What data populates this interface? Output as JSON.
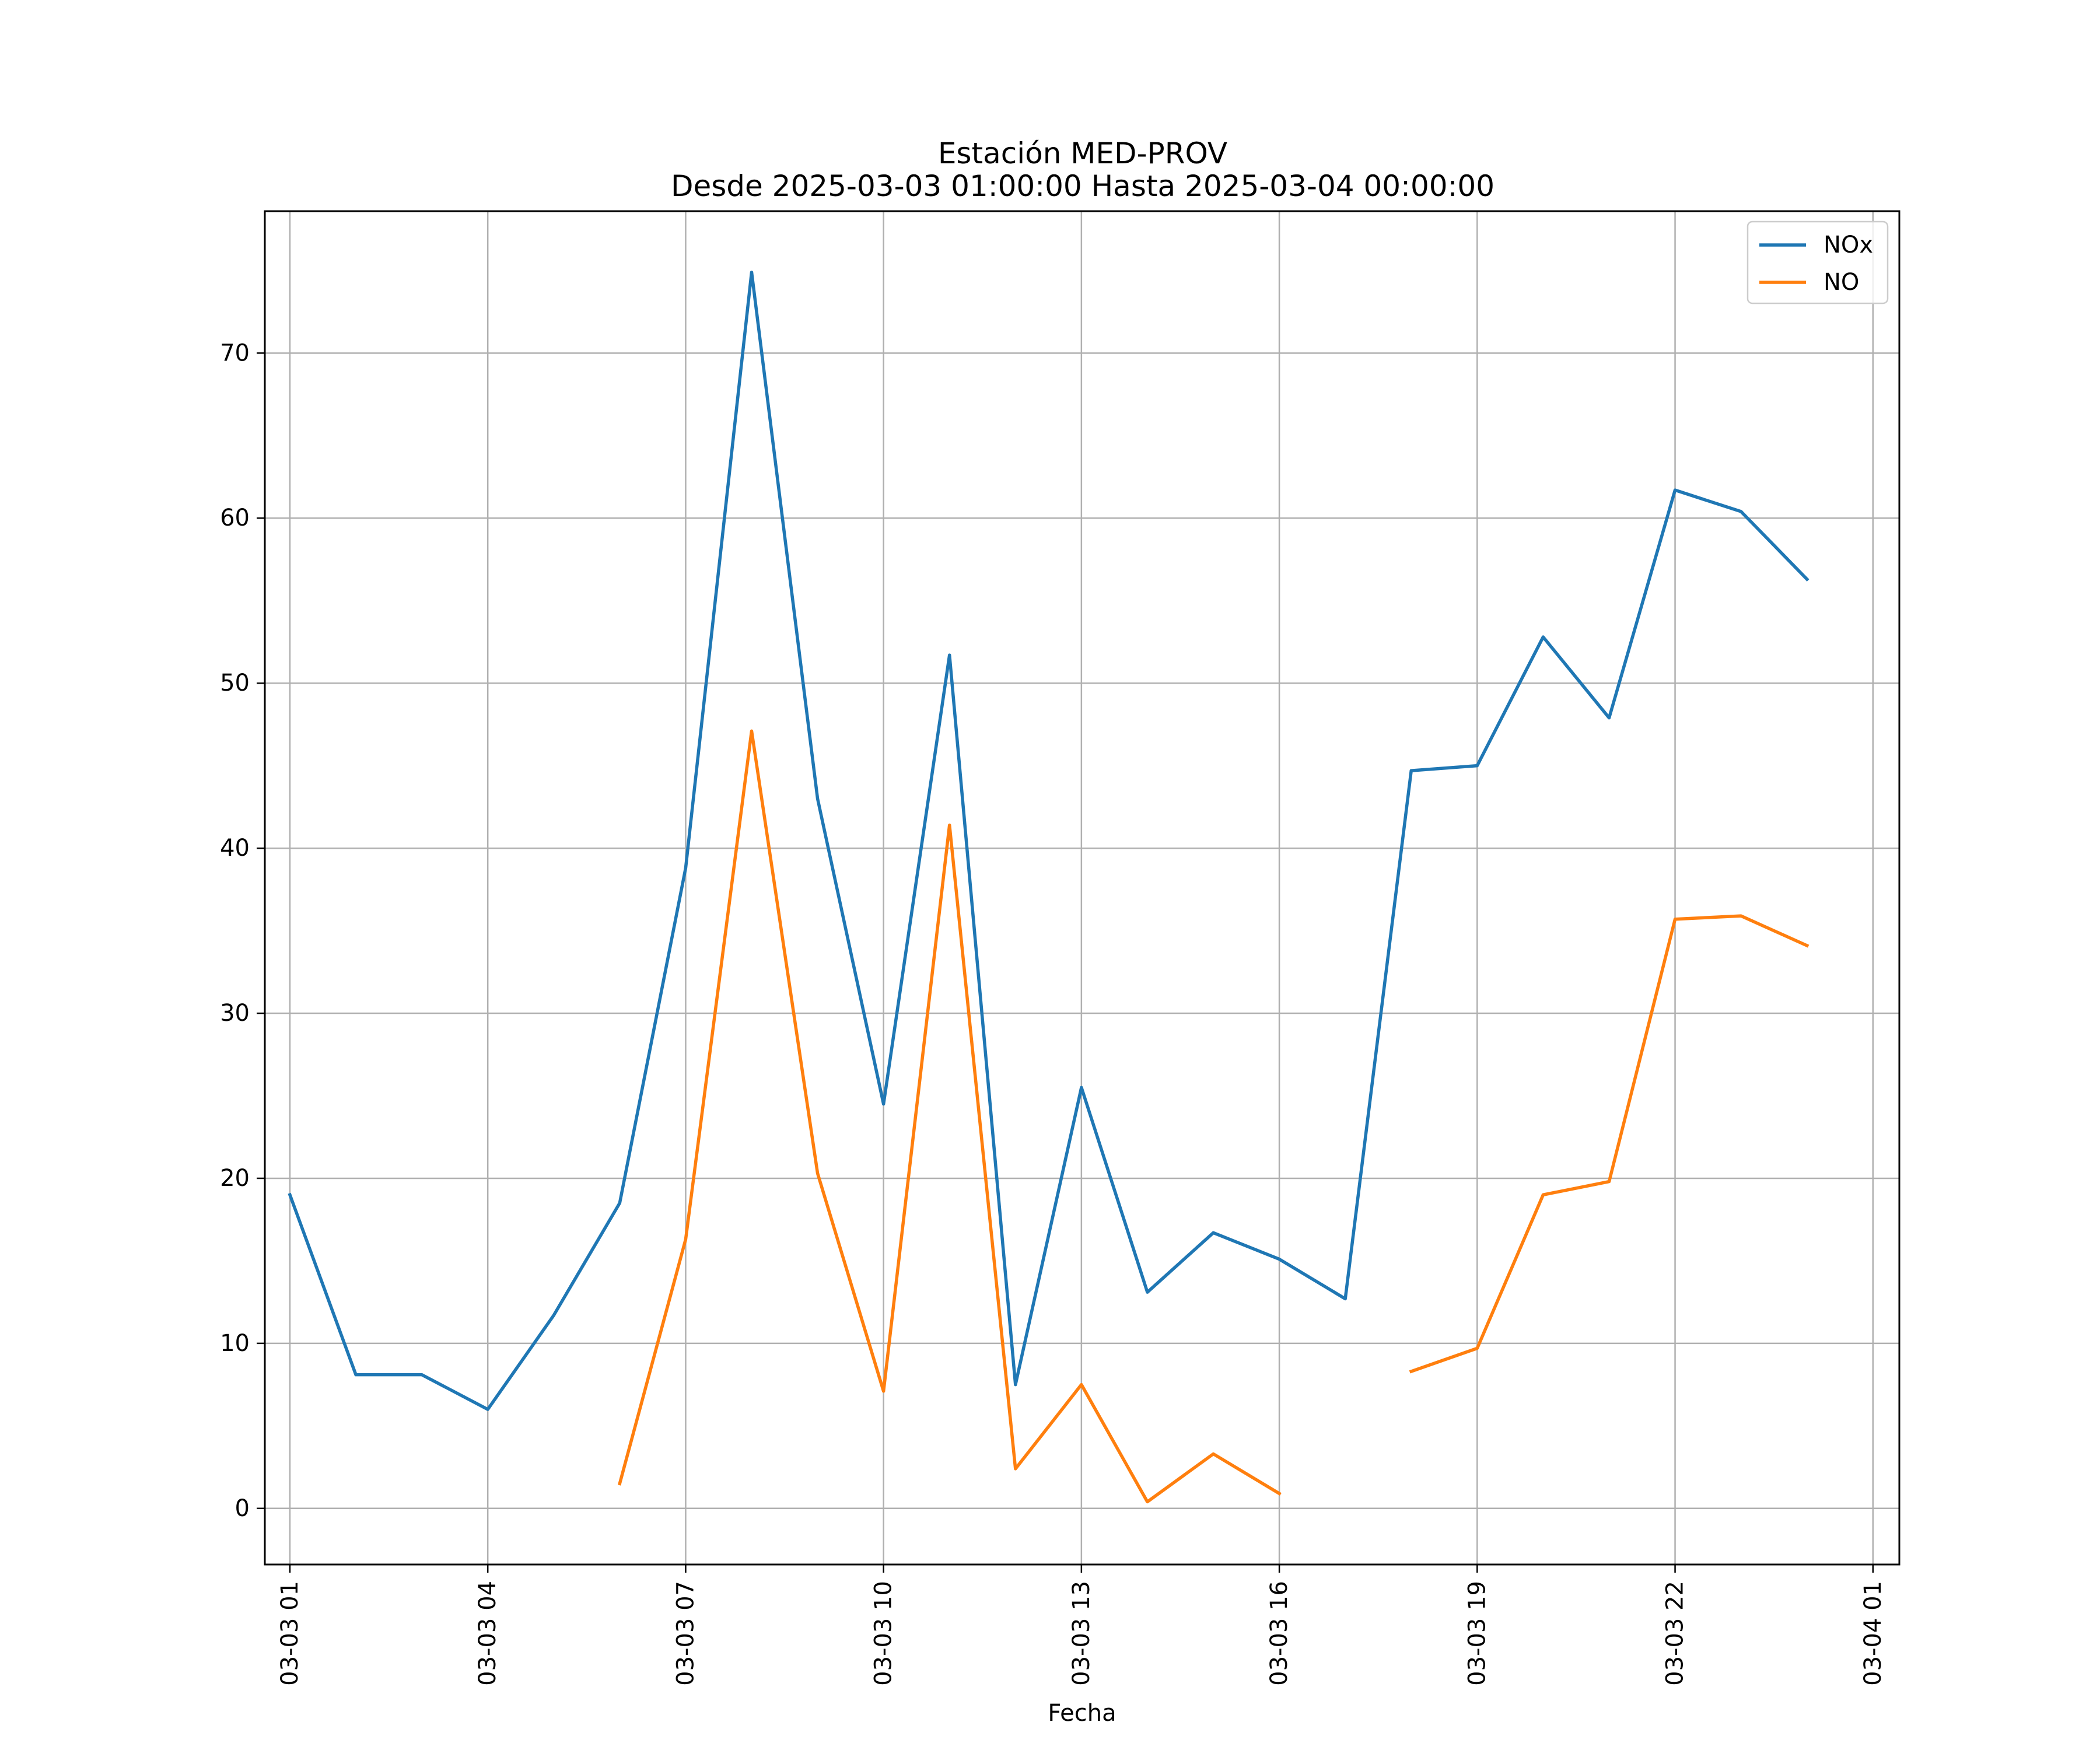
{
  "chart_data": {
    "type": "line",
    "title_line1": "Estación MED-PROV",
    "title_line2": "Desde 2025-03-03 01:00:00 Hasta 2025-03-04 00:00:00",
    "xlabel": "Fecha",
    "ylabel": "",
    "grid": true,
    "legend_position": "top-right",
    "xlim": [
      0.62,
      25.4
    ],
    "ylim": [
      -3.4,
      78.6
    ],
    "x_ticks": [
      {
        "pos": 1,
        "label": "03-03 01"
      },
      {
        "pos": 4,
        "label": "03-03 04"
      },
      {
        "pos": 7,
        "label": "03-03 07"
      },
      {
        "pos": 10,
        "label": "03-03 10"
      },
      {
        "pos": 13,
        "label": "03-03 13"
      },
      {
        "pos": 16,
        "label": "03-03 16"
      },
      {
        "pos": 19,
        "label": "03-03 19"
      },
      {
        "pos": 22,
        "label": "03-03 22"
      },
      {
        "pos": 25,
        "label": "03-04 01"
      }
    ],
    "y_ticks": [
      0,
      10,
      20,
      30,
      40,
      50,
      60,
      70
    ],
    "series": [
      {
        "name": "NOx",
        "color": "#1f77b4",
        "points": [
          [
            1,
            19.0
          ],
          [
            2,
            8.1
          ],
          [
            3,
            8.1
          ],
          [
            4,
            6.0
          ],
          [
            5,
            11.7
          ],
          [
            6,
            18.5
          ],
          [
            7,
            38.8
          ],
          [
            8,
            74.9
          ],
          [
            9,
            43.0
          ],
          [
            10,
            24.5
          ],
          [
            11,
            51.7
          ],
          [
            12,
            7.5
          ],
          [
            13,
            25.5
          ],
          [
            14,
            13.1
          ],
          [
            15,
            16.7
          ],
          [
            16,
            15.1
          ],
          [
            17,
            12.7
          ],
          [
            18,
            44.7
          ],
          [
            19,
            45.0
          ],
          [
            20,
            52.8
          ],
          [
            21,
            47.9
          ],
          [
            22,
            61.7
          ],
          [
            23,
            60.4
          ],
          [
            24,
            56.3
          ]
        ]
      },
      {
        "name": "NO",
        "color": "#ff7f0e",
        "points": [
          [
            6,
            1.5
          ],
          [
            7,
            16.3
          ],
          [
            8,
            47.1
          ],
          [
            9,
            20.3
          ],
          [
            10,
            7.1
          ],
          [
            11,
            41.4
          ],
          [
            12,
            2.4
          ],
          [
            13,
            7.5
          ],
          [
            14,
            0.4
          ],
          [
            15,
            3.3
          ],
          [
            16,
            0.9
          ],
          [
            17,
            null
          ],
          [
            18,
            8.3
          ],
          [
            19,
            9.7
          ],
          [
            20,
            19.0
          ],
          [
            21,
            19.8
          ],
          [
            22,
            35.7
          ],
          [
            23,
            35.9
          ],
          [
            24,
            34.1
          ]
        ]
      }
    ]
  }
}
